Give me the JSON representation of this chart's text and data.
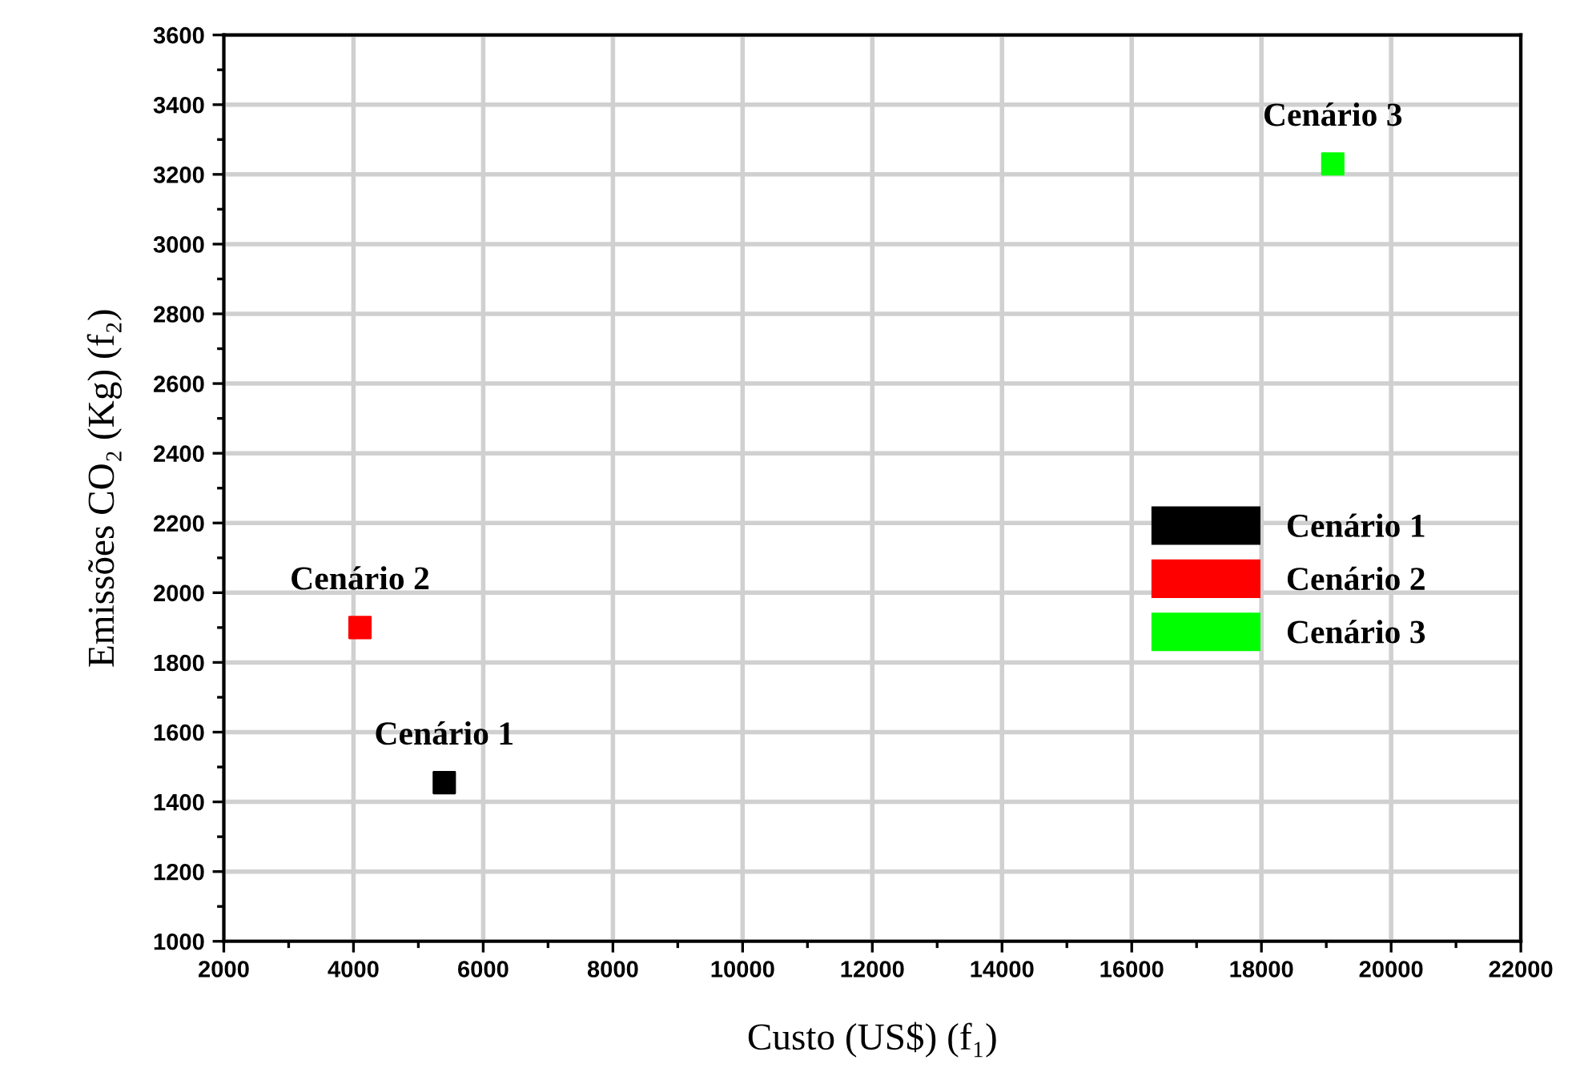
{
  "chart_data": {
    "type": "scatter",
    "xlabel": "Custo (US$) (f₁)",
    "ylabel": "Emissões CO₂ (Kg) (f₂)",
    "series": [
      {
        "name": "Cenário 1",
        "color": "#000000",
        "x": [
          5400
        ],
        "values": [
          1455
        ]
      },
      {
        "name": "Cenário 2",
        "color": "#ff0000",
        "x": [
          4100
        ],
        "values": [
          1900
        ]
      },
      {
        "name": "Cenário 3",
        "color": "#00ff00",
        "x": [
          19100
        ],
        "values": [
          3230
        ]
      }
    ],
    "annotations": [
      {
        "text": "Cenário 1",
        "x": 5400,
        "y": 1455
      },
      {
        "text": "Cenário 2",
        "x": 4100,
        "y": 1900
      },
      {
        "text": "Cenário 3",
        "x": 19100,
        "y": 3230
      }
    ],
    "xlim": [
      2000,
      22000
    ],
    "xticks": [
      2000,
      4000,
      6000,
      8000,
      10000,
      12000,
      14000,
      16000,
      18000,
      20000,
      22000
    ],
    "ylim": [
      1000,
      3600
    ],
    "yticks": [
      1000,
      1200,
      1400,
      1600,
      1800,
      2000,
      2200,
      2400,
      2600,
      2800,
      3000,
      3200,
      3400,
      3600
    ],
    "grid": true,
    "legend": "right",
    "marker": "square"
  }
}
